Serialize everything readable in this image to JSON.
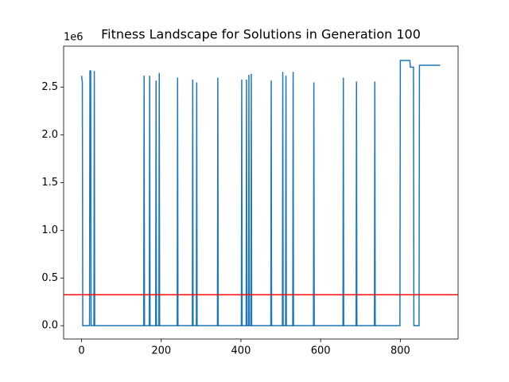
{
  "chart_data": {
    "type": "line",
    "title": "Fitness Landscape for Solutions in Generation 100",
    "y_offset_label": "1e6",
    "x": [
      0,
      2,
      3,
      20,
      21,
      23,
      24,
      31,
      32,
      33,
      156,
      157,
      158,
      170,
      171,
      172,
      186,
      187,
      188,
      194,
      195,
      196,
      240,
      241,
      242,
      278,
      279,
      280,
      288,
      289,
      290,
      341,
      342,
      343,
      401,
      402,
      403,
      413,
      414,
      415,
      419,
      420,
      421,
      425,
      426,
      427,
      475,
      476,
      477,
      504,
      505,
      506,
      512,
      513,
      514,
      530,
      531,
      532,
      582,
      583,
      584,
      656,
      657,
      658,
      689,
      690,
      691,
      735,
      736,
      737,
      799,
      800,
      824,
      825,
      833,
      834,
      847,
      848,
      900
    ],
    "series": [
      {
        "color": "#1f77b4",
        "values": [
          2.62,
          2.55,
          0,
          0,
          2.67,
          2.67,
          0,
          0,
          2.67,
          0,
          0,
          2.62,
          0,
          0,
          2.62,
          0,
          0,
          2.57,
          0,
          0,
          2.65,
          0,
          0,
          2.6,
          0,
          0,
          2.58,
          0,
          0,
          2.55,
          0,
          0,
          2.6,
          0,
          0,
          2.58,
          0,
          0,
          2.58,
          0,
          0,
          2.63,
          0,
          0,
          2.64,
          0,
          0,
          2.57,
          0,
          0,
          2.66,
          0,
          0,
          2.62,
          0,
          0,
          2.66,
          0,
          0,
          2.55,
          0,
          0,
          2.6,
          0,
          0,
          2.56,
          0,
          0,
          2.56,
          0,
          0,
          2.78,
          2.78,
          2.71,
          2.71,
          0,
          0,
          2.73,
          2.73
        ]
      }
    ],
    "hline": {
      "value": 0.324,
      "color": "#ff0000"
    },
    "xlim": [
      -45,
      945
    ],
    "ylim": [
      -0.14,
      2.93
    ],
    "xticks": [
      0,
      200,
      400,
      600,
      800
    ],
    "yticks": [
      {
        "value": 0,
        "label": "0.0"
      },
      0.5,
      {
        "value": 1,
        "label": "1.0"
      },
      1.5,
      {
        "value": 2,
        "label": "2.0"
      },
      2.5
    ]
  }
}
